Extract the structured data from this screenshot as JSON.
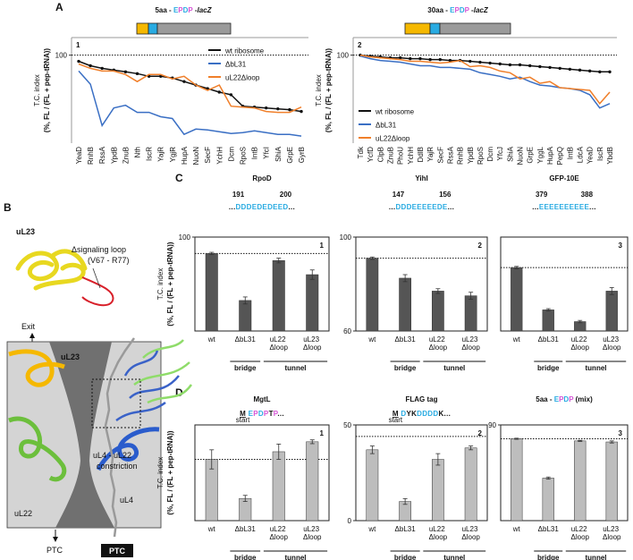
{
  "panel_labels": [
    "A",
    "B",
    "C",
    "D"
  ],
  "diagram": {
    "uL23_top": "uL23",
    "loop_label": "Δsignaling loop",
    "loop_range": "(V67 - R77)",
    "exit": "Exit",
    "uL23": "uL23",
    "uL22": "uL22",
    "uL4": "uL4",
    "ptc": "PTC",
    "constriction": [
      "uL4 - uL22",
      "constriction"
    ],
    "ptc_box": "PTC"
  },
  "chart_data": [
    {
      "type": "line",
      "number": 1,
      "header": [
        {
          "text": "5aa - "
        },
        {
          "text": "E",
          "color": "#29abe2"
        },
        {
          "text": "P",
          "color": "#d656d6"
        },
        {
          "text": "D",
          "color": "#29abe2"
        },
        {
          "text": "P",
          "color": "#d656d6"
        },
        {
          "text": " -"
        },
        {
          "text": "lacZ",
          "italic": true
        }
      ],
      "ylabel": [
        "T.C. index",
        "(%, FL / (FL + pep-tRNA))"
      ],
      "categories": [
        "YeaD",
        "RnhB",
        "RssA",
        "YpdB",
        "ZnuB",
        "Nth",
        "IscR",
        "YajR",
        "YgjR",
        "HupA",
        "NuoN",
        "SecF",
        "YchH",
        "Dcm",
        "RpoS",
        "IntB",
        "YfcI",
        "ShiA",
        "GrpE",
        "GyrB"
      ],
      "series": [
        {
          "name": "wt ribosome",
          "color": "#111111",
          "values": [
            93,
            88,
            85,
            83,
            81,
            79,
            76,
            76,
            74,
            70,
            66,
            62,
            58,
            55,
            42,
            41,
            40,
            39,
            38,
            36
          ]
        },
        {
          "name": "ΔbL31",
          "color": "#3a6fc4",
          "values": [
            82,
            67,
            20,
            40,
            43,
            35,
            35,
            30,
            28,
            10,
            16,
            15,
            13,
            11,
            12,
            14,
            12,
            10,
            10,
            8
          ]
        },
        {
          "name": "uL22Δloop",
          "color": "#f07f2a",
          "values": [
            90,
            85,
            82,
            82,
            78,
            70,
            78,
            78,
            73,
            76,
            66,
            60,
            66,
            42,
            41,
            40,
            36,
            35,
            35,
            41
          ]
        }
      ],
      "ylim": [
        0,
        120
      ],
      "yticks": [
        100
      ],
      "reference": 100,
      "legend": "upper right"
    },
    {
      "type": "line",
      "number": 2,
      "header": [
        {
          "text": "30aa - "
        },
        {
          "text": "E",
          "color": "#29abe2"
        },
        {
          "text": "P",
          "color": "#d656d6"
        },
        {
          "text": "D",
          "color": "#29abe2"
        },
        {
          "text": "P",
          "color": "#d656d6"
        },
        {
          "text": " -"
        },
        {
          "text": "lacZ",
          "italic": true
        }
      ],
      "ylabel": [
        "T.C. index",
        "(%, FL / (FL + pep-tRNA))"
      ],
      "categories": [
        "Tdk",
        "YcfD",
        "ClpB",
        "ZnuB",
        "PhoU",
        "YchH",
        "DdlB",
        "YajR",
        "SecF",
        "RssA",
        "RnhB",
        "YpdB",
        "RpoS",
        "Dcm",
        "YfcJ",
        "ShiA",
        "NuoN",
        "GrpE",
        "YggL",
        "HupA",
        "PepQ",
        "IntB",
        "LdcA",
        "YeaD",
        "IscR",
        "YbdB"
      ],
      "series": [
        {
          "name": "wt ribosome",
          "color": "#111111",
          "values": [
            100,
            99,
            98,
            97,
            97,
            96,
            96,
            95,
            95,
            94,
            94,
            93,
            92,
            91,
            90,
            89,
            89,
            88,
            87,
            86,
            85,
            84,
            83,
            82,
            81,
            81
          ]
        },
        {
          "name": "ΔbL31",
          "color": "#3a6fc4",
          "values": [
            99,
            96,
            94,
            93,
            92,
            90,
            88,
            88,
            86,
            86,
            85,
            84,
            80,
            78,
            76,
            73,
            75,
            70,
            66,
            65,
            63,
            62,
            60,
            55,
            40,
            45
          ]
        },
        {
          "name": "uL22Δloop",
          "color": "#f07f2a",
          "values": [
            100,
            98,
            97,
            96,
            95,
            93,
            93,
            92,
            91,
            92,
            94,
            87,
            88,
            86,
            82,
            80,
            73,
            75,
            68,
            70,
            63,
            62,
            61,
            60,
            45,
            58
          ]
        }
      ],
      "ylim": [
        0,
        120
      ],
      "yticks": [
        100
      ],
      "reference": 100,
      "legend": "lower left"
    },
    {
      "type": "bar",
      "number": 1,
      "title": "RpoD",
      "residues": [
        191,
        200
      ],
      "sequence": [
        {
          "text": "..."
        },
        {
          "text": "DDDEDEDEED",
          "color": "#29abe2"
        },
        {
          "text": "..."
        }
      ],
      "ylabel": [
        "T.C. index",
        "(%, FL / (FL + pep-tRNA))"
      ],
      "categories": [
        "wt",
        "ΔbL31",
        "uL22 Δloop",
        "uL23 Δloop"
      ],
      "groups": [
        "bridge",
        "tunnel"
      ],
      "values": [
        93,
        73,
        90,
        84
      ],
      "errors": [
        0.5,
        1.5,
        1,
        2
      ],
      "color": "#555555",
      "ylim": [
        60,
        100
      ],
      "yticks": [
        100
      ],
      "reference": 93
    },
    {
      "type": "bar",
      "number": 2,
      "title": "YihI",
      "residues": [
        147,
        156
      ],
      "sequence": [
        {
          "text": "..."
        },
        {
          "text": "DDDEEEEEDE",
          "color": "#29abe2"
        },
        {
          "text": "..."
        }
      ],
      "categories": [
        "wt",
        "ΔbL31",
        "uL22 Δloop",
        "uL23 Δloop"
      ],
      "groups": [
        "bridge",
        "tunnel"
      ],
      "values": [
        91,
        82.5,
        77,
        75
      ],
      "errors": [
        0.5,
        1.5,
        1,
        1.5
      ],
      "color": "#555555",
      "ylim": [
        60,
        100
      ],
      "yticks": [
        60,
        100
      ],
      "reference": 91
    },
    {
      "type": "bar",
      "number": 3,
      "title": "GFP-10E",
      "residues": [
        379,
        388
      ],
      "sequence": [
        {
          "text": "..."
        },
        {
          "text": "EEEEEEEEEE",
          "color": "#29abe2"
        },
        {
          "text": "..."
        }
      ],
      "categories": [
        "wt",
        "ΔbL31",
        "uL22 Δloop",
        "uL23 Δloop"
      ],
      "groups": [
        "bridge",
        "tunnel"
      ],
      "values": [
        87,
        69,
        64,
        77
      ],
      "errors": [
        0.5,
        0.5,
        0.5,
        1.5
      ],
      "color": "#555555",
      "ylim": [
        60,
        100
      ],
      "yticks": [],
      "reference": 87
    },
    {
      "type": "bar",
      "number": 1,
      "title": "MgtL",
      "start_label": "start",
      "sequence": [
        {
          "text": "M",
          "bold": true,
          "underline": true
        },
        {
          "text": " "
        },
        {
          "text": "E",
          "color": "#29abe2"
        },
        {
          "text": "P",
          "color": "#d656d6"
        },
        {
          "text": "D",
          "color": "#29abe2"
        },
        {
          "text": "P",
          "color": "#d656d6"
        },
        {
          "text": "T"
        },
        {
          "text": "P",
          "color": "#d656d6"
        },
        {
          "text": "..."
        }
      ],
      "ylabel": [
        "T.C. index",
        "(%, FL / (FL + pep-tRNA))"
      ],
      "categories": [
        "wt",
        "ΔbL31",
        "uL22 Δloop",
        "uL23 Δloop"
      ],
      "groups": [
        "bridge",
        "tunnel"
      ],
      "values": [
        16,
        5.8,
        18,
        20.6
      ],
      "errors": [
        2.5,
        0.8,
        2,
        0.5
      ],
      "color": "#bdbdbd",
      "ylim": [
        0,
        25
      ],
      "yticks": [],
      "reference": 16
    },
    {
      "type": "bar",
      "number": 2,
      "title": "FLAG tag",
      "start_label": "start",
      "sequence": [
        {
          "text": "M",
          "bold": true,
          "underline": true
        },
        {
          "text": " "
        },
        {
          "text": "D",
          "color": "#29abe2"
        },
        {
          "text": "YK"
        },
        {
          "text": "DDDD",
          "color": "#29abe2"
        },
        {
          "text": "K"
        },
        {
          "text": "..."
        }
      ],
      "categories": [
        "wt",
        "ΔbL31",
        "uL22 Δloop",
        "uL23 Δloop"
      ],
      "groups": [
        "bridge",
        "tunnel"
      ],
      "values": [
        37,
        10,
        32,
        38
      ],
      "errors": [
        2,
        1.5,
        3,
        1
      ],
      "color": "#bdbdbd",
      "ylim": [
        0,
        50
      ],
      "yticks": [
        0,
        50
      ],
      "reference": 44
    },
    {
      "type": "bar",
      "number": 3,
      "title": [
        {
          "text": "5aa - "
        },
        {
          "text": "E",
          "color": "#29abe2"
        },
        {
          "text": "P",
          "color": "#d656d6"
        },
        {
          "text": "D",
          "color": "#29abe2"
        },
        {
          "text": "P",
          "color": "#d656d6"
        },
        {
          "text": " (mix)"
        }
      ],
      "categories": [
        "wt",
        "ΔbL31",
        "uL22 Δloop",
        "uL23 Δloop"
      ],
      "groups": [
        "bridge",
        "tunnel"
      ],
      "values": [
        77,
        40,
        75,
        74
      ],
      "errors": [
        0.5,
        1,
        0.5,
        1
      ],
      "color": "#bdbdbd",
      "ylim": [
        0,
        90
      ],
      "yticks": [
        90
      ],
      "reference": 77
    }
  ]
}
